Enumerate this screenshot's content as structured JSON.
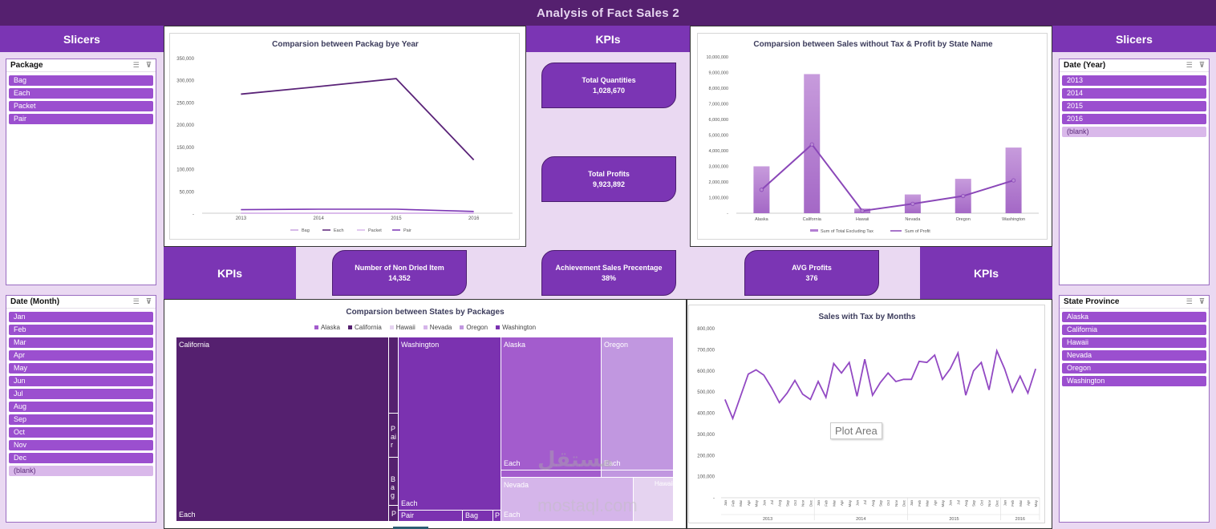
{
  "title": "Analysis of Fact Sales 2",
  "headers": {
    "slicers_left": "Slicers",
    "slicers_right": "Slicers",
    "kpi_top": "KPIs",
    "kpi_left": "KPIs",
    "kpi_right": "KPIs"
  },
  "slicers": {
    "package": {
      "title": "Package",
      "items": [
        "Bag",
        "Each",
        "Packet",
        "Pair"
      ]
    },
    "month": {
      "title": "Date (Month)",
      "items": [
        "Jan",
        "Feb",
        "Mar",
        "Apr",
        "May",
        "Jun",
        "Jul",
        "Aug",
        "Sep",
        "Oct",
        "Nov",
        "Dec",
        "(blank)"
      ]
    },
    "year": {
      "title": "Date (Year)",
      "items": [
        "2013",
        "2014",
        "2015",
        "2016",
        "(blank)"
      ]
    },
    "state": {
      "title": "State Province",
      "items": [
        "Alaska",
        "California",
        "Hawaii",
        "Nevada",
        "Oregon",
        "Washington"
      ]
    }
  },
  "kpis": {
    "total_quantities": {
      "label": "Total Quantities",
      "value": "1,028,670"
    },
    "total_profits": {
      "label": "Total Profits",
      "value": "9,923,892"
    },
    "non_dried": {
      "label": "Number of Non Dried Item",
      "value": "14,352"
    },
    "achievement": {
      "label": "Achievement Sales Precentage",
      "value": "38%"
    },
    "avg_profits": {
      "label": "AVG Profits",
      "value": "376"
    }
  },
  "colors": {
    "dark": "#55206f",
    "accent": "#7b35b4",
    "light": "#ead9f2"
  },
  "chart_data": [
    {
      "type": "line",
      "title": "Comparsion between Packag bye Year",
      "categories": [
        "2013",
        "2014",
        "2015",
        "2016"
      ],
      "ylim": [
        0,
        350000
      ],
      "yticks": [
        "-",
        "50,000",
        "100,000",
        "150,000",
        "200,000",
        "250,000",
        "300,000",
        "350,000"
      ],
      "series": [
        {
          "name": "Bag",
          "values": [
            0,
            0,
            0,
            0
          ],
          "color": "#c9a3e0"
        },
        {
          "name": "Each",
          "values": [
            268000,
            285000,
            303000,
            120000
          ],
          "color": "#5a2378"
        },
        {
          "name": "Packet",
          "values": [
            0,
            0,
            0,
            0
          ],
          "color": "#d8b6ea"
        },
        {
          "name": "Pair",
          "values": [
            8000,
            9000,
            9000,
            4000
          ],
          "color": "#7b35b4"
        }
      ]
    },
    {
      "type": "bar",
      "title": "Comparsion between Sales without Tax & Profit by State Name",
      "categories": [
        "Alaska",
        "California",
        "Hawaii",
        "Nevada",
        "Oregon",
        "Washington"
      ],
      "ylim": [
        0,
        10000000
      ],
      "yticks": [
        "-",
        "1,000,000",
        "2,000,000",
        "3,000,000",
        "4,000,000",
        "5,000,000",
        "6,000,000",
        "7,000,000",
        "8,000,000",
        "9,000,000",
        "10,000,000"
      ],
      "series": [
        {
          "name": "Sum of Total Excluding Tax",
          "values": [
            3000000,
            8900000,
            300000,
            1200000,
            2200000,
            4200000
          ]
        },
        {
          "name": "Sum of Profit",
          "values": [
            1500000,
            4400000,
            150000,
            600000,
            1100000,
            2100000
          ]
        }
      ]
    },
    {
      "type": "treemap",
      "title": "Comparsion between States by Packages",
      "legend": [
        "Alaska",
        "California",
        "Hawaii",
        "Nevada",
        "Oregon",
        "Washington"
      ],
      "labels": {
        "california": "California",
        "washington": "Washington",
        "alaska": "Alaska",
        "oregon": "Oregon",
        "nevada": "Nevada",
        "each": "Each",
        "pair": "Pair",
        "bag": "Bag",
        "p": "P",
        "hawaii": "Hawaii"
      }
    },
    {
      "type": "line",
      "title": "Sales with Tax by Months",
      "plot_area_label": "Plot Area",
      "ylim": [
        0,
        800000
      ],
      "yticks": [
        "-",
        "100,000",
        "200,000",
        "300,000",
        "400,000",
        "500,000",
        "600,000",
        "700,000",
        "800,000"
      ],
      "month_labels": [
        "Jan",
        "Feb",
        "Mar",
        "Apr",
        "May",
        "Jun",
        "Jul",
        "Aug",
        "Sep",
        "Oct",
        "Nov",
        "Dec"
      ],
      "years": [
        "2013",
        "2014",
        "2015",
        "2016"
      ],
      "months_per_year": [
        12,
        12,
        12,
        5
      ],
      "values": [
        465000,
        375000,
        480000,
        585000,
        605000,
        580000,
        520000,
        450000,
        495000,
        555000,
        490000,
        465000,
        550000,
        475000,
        635000,
        590000,
        640000,
        480000,
        655000,
        485000,
        545000,
        590000,
        550000,
        560000,
        560000,
        645000,
        640000,
        675000,
        560000,
        610000,
        685000,
        485000,
        600000,
        640000,
        510000,
        695000,
        610000,
        500000,
        575000,
        495000,
        610000
      ]
    }
  ],
  "watermark": "mostaql.com"
}
